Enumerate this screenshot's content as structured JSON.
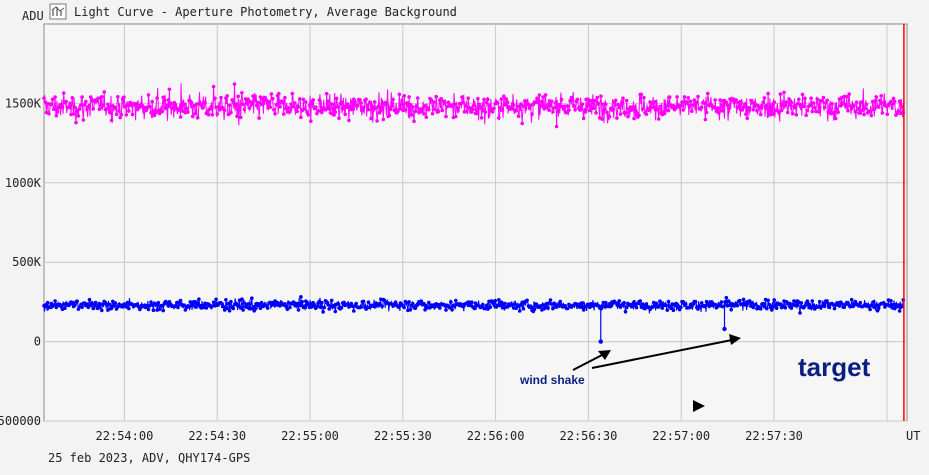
{
  "window": {
    "title": "Light Curve - Aperture Photometry, Average Background",
    "icon": "chart-icon"
  },
  "footer": {
    "caption": "25 feb 2023, ADV, QHY174-GPS"
  },
  "chart_data": {
    "type": "line",
    "title": "Light Curve - Aperture Photometry, Average Background",
    "ylabel": "ADU",
    "xlabel": "UT",
    "y_unit": "ADU",
    "ylim": [
      -500000,
      2000000
    ],
    "xlim": [
      "22:53:34",
      "22:58:13"
    ],
    "x_ticks": [
      "22:54:00",
      "22:54:30",
      "22:55:00",
      "22:55:30",
      "22:56:00",
      "22:56:30",
      "22:57:00",
      "22:57:30"
    ],
    "y_ticks": [
      {
        "value": 1500000,
        "label": "1500K"
      },
      {
        "value": 1000000,
        "label": "1000K"
      },
      {
        "value": 500000,
        "label": "500K"
      },
      {
        "value": 0,
        "label": "0"
      },
      {
        "value": -500000,
        "label": "-500000"
      }
    ],
    "grid": true,
    "legend": "none",
    "series": [
      {
        "role": "comparison",
        "color": "#ff00ff",
        "approx_level": 1480000,
        "approx_min": 1220000,
        "approx_max": 1830000,
        "x_range": [
          "22:53:34",
          "22:58:12"
        ]
      },
      {
        "role": "target",
        "color": "#0000ff",
        "approx_level": 230000,
        "approx_min": 120000,
        "approx_max": 370000,
        "x_range": [
          "22:53:34",
          "22:58:12"
        ],
        "dropouts": [
          {
            "x": "22:56:34",
            "y": 0
          },
          {
            "x": "22:57:14",
            "y": 80000
          }
        ]
      }
    ],
    "cursor_line": {
      "x": "22:58:12",
      "color": "#ff0000"
    },
    "annotations": [
      {
        "text": "wind shake",
        "color": "#0b1f80"
      },
      {
        "text": "target",
        "color": "#0b1f80"
      }
    ]
  }
}
